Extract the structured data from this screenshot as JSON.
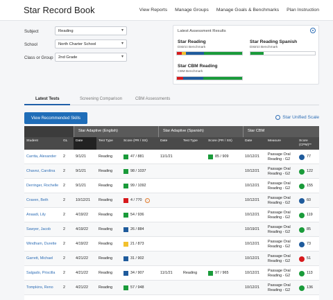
{
  "header": {
    "title": "Star Record Book",
    "nav": [
      "View Reports",
      "Manage Groups",
      "Manage Goals & Benchmarks",
      "Plan Instruction"
    ]
  },
  "filters": {
    "subject": {
      "label": "Subject",
      "value": "Reading"
    },
    "school": {
      "label": "School",
      "value": "North Charter School"
    },
    "class_group": {
      "label": "Class or Group",
      "value": "2nd Grade"
    }
  },
  "card": {
    "title": "Latest Assessment Results",
    "measures": [
      {
        "name": "Star Reading",
        "sub": "District Benchmark"
      },
      {
        "name": "Star Reading Spanish",
        "sub": "District Benchmark"
      },
      {
        "name": "Star CBM Reading",
        "sub": "CBM Benchmark"
      }
    ]
  },
  "colors": {
    "red": "#d7191c",
    "yellow": "#f2c12e",
    "blue": "#1f5b9c",
    "green": "#1a9b3a",
    "accent": "#1f6db8"
  },
  "bars": {
    "star_reading": [
      [
        "red",
        0.07
      ],
      [
        "yellow",
        0.07
      ],
      [
        "blue",
        0.27
      ],
      [
        "green",
        0.59
      ]
    ],
    "star_reading_spanish": [
      [
        "green",
        0.2
      ]
    ],
    "star_cbm_reading": [
      [
        "red",
        0.1
      ],
      [
        "blue",
        0.3
      ],
      [
        "green",
        0.6
      ]
    ]
  },
  "tabs": [
    "Latest Tests",
    "Screening Comparison",
    "CBM Assessments"
  ],
  "actions": {
    "view_button": "View Recommended Skills",
    "unified_scale": "Star Unified Scale"
  },
  "table": {
    "groups": [
      "Star Adaptive (English)",
      "Star Adaptive (Spanish)",
      "Star CBM"
    ],
    "columns": [
      "Student",
      "GL",
      "Date",
      "Test Type",
      "Score (PR / SS)",
      "Date",
      "Test Type",
      "Score (PR / SS)",
      "Date",
      "Measure",
      "Score (CPM)**"
    ],
    "rows": [
      {
        "student": "Carrita, Alexander",
        "gl": "2",
        "date": "9/1/21",
        "type": "Reading",
        "score": "47 / 881",
        "color": "green",
        "warn": false,
        "s_date": "11/1/21",
        "s_type": "",
        "s_score": "85 / 909",
        "s_color": "green",
        "c_date": "10/12/21",
        "measure": "Passage Oral Reading - G2",
        "cpm": "77",
        "c_color": "blue"
      },
      {
        "student": "Chavez, Carolina",
        "gl": "2",
        "date": "9/1/21",
        "type": "Reading",
        "score": "98 / 1037",
        "color": "green",
        "warn": false,
        "s_date": "",
        "s_type": "",
        "s_score": "",
        "s_color": "",
        "c_date": "10/12/21",
        "measure": "Passage Oral Reading - G2",
        "cpm": "122",
        "c_color": "green"
      },
      {
        "student": "Derringer, Rochelle",
        "gl": "2",
        "date": "9/1/21",
        "type": "Reading",
        "score": "99 / 1092",
        "color": "green",
        "warn": false,
        "s_date": "",
        "s_type": "",
        "s_score": "",
        "s_color": "",
        "c_date": "10/12/21",
        "measure": "Passage Oral Reading - G2",
        "cpm": "155",
        "c_color": "green"
      },
      {
        "student": "Craven, Beth",
        "gl": "2",
        "date": "10/12/21",
        "type": "Reading",
        "score": "4 / 770",
        "color": "red",
        "warn": true,
        "s_date": "",
        "s_type": "",
        "s_score": "",
        "s_color": "",
        "c_date": "10/12/21",
        "measure": "Passage Oral Reading - G2",
        "cpm": "60",
        "c_color": "blue"
      },
      {
        "student": "Anaadi, Lily",
        "gl": "2",
        "date": "4/19/22",
        "type": "Reading",
        "score": "54 / 936",
        "color": "green",
        "warn": false,
        "s_date": "",
        "s_type": "",
        "s_score": "",
        "s_color": "",
        "c_date": "10/12/21",
        "measure": "Passage Oral Reading - G2",
        "cpm": "119",
        "c_color": "green"
      },
      {
        "student": "Sawyer, Jacob",
        "gl": "2",
        "date": "4/19/22",
        "type": "Reading",
        "score": "26 / 884",
        "color": "blue",
        "warn": false,
        "s_date": "",
        "s_type": "",
        "s_score": "",
        "s_color": "",
        "c_date": "10/19/21",
        "measure": "Passage Oral Reading - G2",
        "cpm": "85",
        "c_color": "green"
      },
      {
        "student": "Windham, Durette",
        "gl": "2",
        "date": "4/19/22",
        "type": "Reading",
        "score": "21 / 873",
        "color": "yellow",
        "warn": false,
        "s_date": "",
        "s_type": "",
        "s_score": "",
        "s_color": "",
        "c_date": "10/12/21",
        "measure": "Passage Oral Reading - G2",
        "cpm": "73",
        "c_color": "blue"
      },
      {
        "student": "Garrett, Michael",
        "gl": "2",
        "date": "4/21/22",
        "type": "Reading",
        "score": "31 / 902",
        "color": "blue",
        "warn": false,
        "s_date": "",
        "s_type": "",
        "s_score": "",
        "s_color": "",
        "c_date": "10/12/21",
        "measure": "Passage Oral Reading - G2",
        "cpm": "51",
        "c_color": "red"
      },
      {
        "student": "Salgado, Priscilla",
        "gl": "2",
        "date": "4/21/22",
        "type": "Reading",
        "score": "34 / 907",
        "color": "blue",
        "warn": false,
        "s_date": "11/1/21",
        "s_type": "Reading",
        "s_score": "97 / 965",
        "s_color": "green",
        "c_date": "10/12/21",
        "measure": "Passage Oral Reading - G2",
        "cpm": "113",
        "c_color": "green"
      },
      {
        "student": "Tompkins, Reno",
        "gl": "2",
        "date": "4/21/22",
        "type": "Reading",
        "score": "57 / 948",
        "color": "green",
        "warn": false,
        "s_date": "",
        "s_type": "",
        "s_score": "",
        "s_color": "",
        "c_date": "10/12/21",
        "measure": "Passage Oral Reading - G2",
        "cpm": "136",
        "c_color": "green"
      }
    ]
  }
}
